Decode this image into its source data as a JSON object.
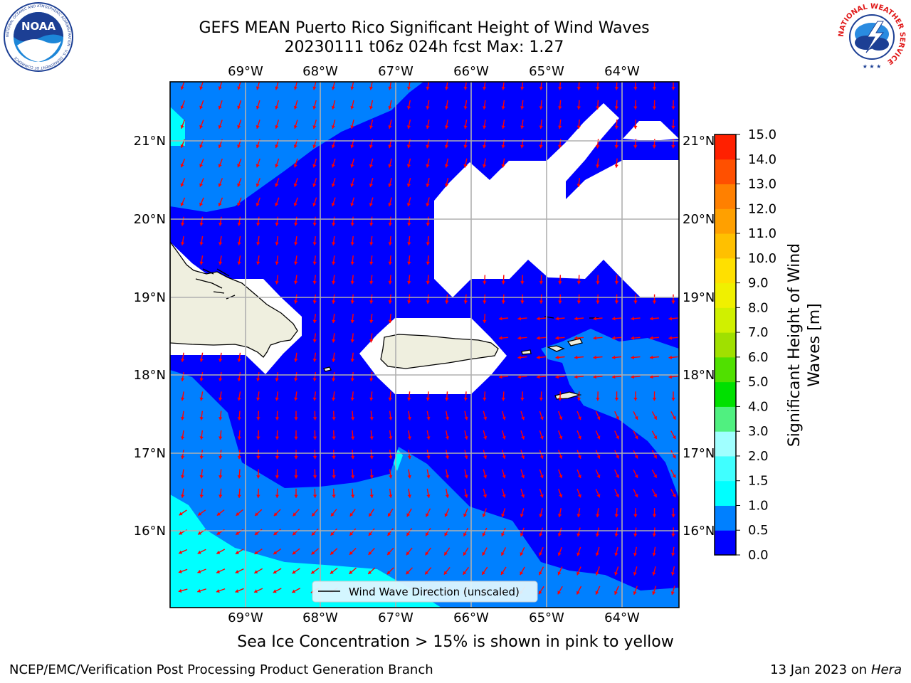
{
  "header": {
    "title_line1": "GEFS MEAN Puerto Rico Significant Height of Wind Waves",
    "title_line2": "20230111 t06z 024h fcst   Max: 1.27"
  },
  "logos": {
    "noaa": {
      "text": "NOAA",
      "ring_text": "NATIONAL OCEANIC AND ATMOSPHERIC ADMINISTRATION · U.S. DEPARTMENT OF COMMERCE"
    },
    "nws": {
      "ring_text": "NATIONAL WEATHER SERVICE"
    }
  },
  "map": {
    "lon_ticks": [
      "69°W",
      "68°W",
      "67°W",
      "66°W",
      "65°W",
      "64°W"
    ],
    "lat_ticks": [
      "21°N",
      "20°N",
      "19°N",
      "18°N",
      "17°N",
      "16°N"
    ],
    "legend_label": "Wind Wave Direction (unscaled)",
    "colors": {
      "band_0_0_5": "#0000ff",
      "band_0_5_1_0": "#0080ff",
      "band_1_0_1_5": "#00ffff",
      "land": "#efefdf",
      "arrows": "#ff0000"
    }
  },
  "colorbar": {
    "label": "Significant Height of Wind Waves [m]",
    "tick_labels": [
      "0.0",
      "0.5",
      "1.0",
      "1.5",
      "2.0",
      "3.0",
      "4.0",
      "5.0",
      "6.0",
      "7.0",
      "8.0",
      "9.0",
      "10.0",
      "11.0",
      "12.0",
      "13.0",
      "14.0",
      "15.0"
    ],
    "colors": [
      "#0000ff",
      "#0080ff",
      "#00ffff",
      "#40ffff",
      "#a0ffff",
      "#50f080",
      "#00e000",
      "#50e000",
      "#a0e000",
      "#d0f000",
      "#f0f000",
      "#ffe000",
      "#ffc000",
      "#ffa000",
      "#ff8000",
      "#ff5000",
      "#ff2000"
    ]
  },
  "footer": {
    "sea_ice_note": "Sea Ice Concentration > 15% is shown in pink to yellow",
    "branch": "NCEP/EMC/Verification Post Processing Product Generation Branch",
    "date_prefix": "13 Jan 2023 on ",
    "host": "Hera"
  }
}
